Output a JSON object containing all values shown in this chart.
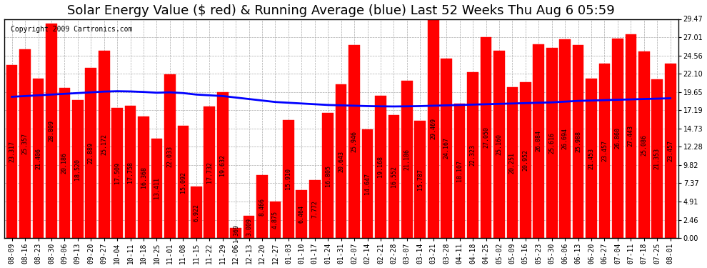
{
  "title": "Solar Energy Value ($ red) & Running Average (blue) Last 52 Weeks Thu Aug 6 05:59",
  "copyright": "Copyright 2009 Cartronics.com",
  "bar_color": "#ff0000",
  "line_color": "#0000ff",
  "background_color": "#ffffff",
  "plot_bg_color": "#ffffff",
  "grid_color": "#aaaaaa",
  "ylim": [
    0,
    29.47
  ],
  "yticks": [
    0.0,
    2.46,
    4.91,
    7.37,
    9.82,
    12.28,
    14.73,
    17.19,
    19.65,
    22.1,
    24.56,
    27.01,
    29.47
  ],
  "categories": [
    "08-09",
    "08-16",
    "08-23",
    "08-30",
    "09-06",
    "09-13",
    "09-20",
    "09-27",
    "10-04",
    "10-11",
    "10-18",
    "10-25",
    "11-01",
    "11-08",
    "11-15",
    "11-22",
    "11-29",
    "12-06",
    "12-13",
    "12-20",
    "12-27",
    "01-03",
    "01-10",
    "01-17",
    "01-24",
    "01-31",
    "02-07",
    "02-14",
    "02-21",
    "02-28",
    "03-07",
    "03-14",
    "03-21",
    "03-28",
    "04-11",
    "04-18",
    "04-25",
    "05-02",
    "05-09",
    "05-16",
    "05-23",
    "05-30",
    "06-06",
    "06-13",
    "06-20",
    "06-27",
    "07-04",
    "07-11",
    "07-18",
    "07-25",
    "08-01"
  ],
  "values": [
    23.317,
    25.357,
    21.406,
    28.809,
    20.186,
    18.52,
    22.889,
    25.172,
    17.509,
    17.758,
    16.368,
    13.411,
    22.033,
    15.092,
    6.922,
    17.732,
    19.632,
    1.369,
    3.009,
    8.466,
    4.875,
    15.91,
    6.464,
    7.772,
    16.805,
    20.643,
    25.946,
    14.647,
    19.168,
    16.552,
    21.186,
    15.787,
    29.469,
    24.167,
    18.107,
    22.323,
    27.05,
    25.16,
    20.251,
    20.952,
    26.084,
    25.616,
    26.694,
    25.988,
    21.453,
    23.457,
    26.86,
    27.443,
    25.086,
    21.353,
    23.457
  ],
  "running_avg": [
    19.0,
    19.1,
    19.2,
    19.3,
    19.4,
    19.5,
    19.6,
    19.7,
    19.75,
    19.72,
    19.65,
    19.55,
    19.6,
    19.5,
    19.3,
    19.2,
    19.1,
    18.9,
    18.7,
    18.5,
    18.3,
    18.2,
    18.1,
    18.0,
    17.9,
    17.85,
    17.8,
    17.75,
    17.72,
    17.7,
    17.72,
    17.75,
    17.8,
    17.85,
    17.9,
    17.95,
    18.0,
    18.05,
    18.1,
    18.15,
    18.2,
    18.25,
    18.35,
    18.45,
    18.5,
    18.55,
    18.6,
    18.65,
    18.7,
    18.75,
    18.8
  ],
  "title_fontsize": 13,
  "tick_fontsize": 7,
  "value_fontsize": 6
}
